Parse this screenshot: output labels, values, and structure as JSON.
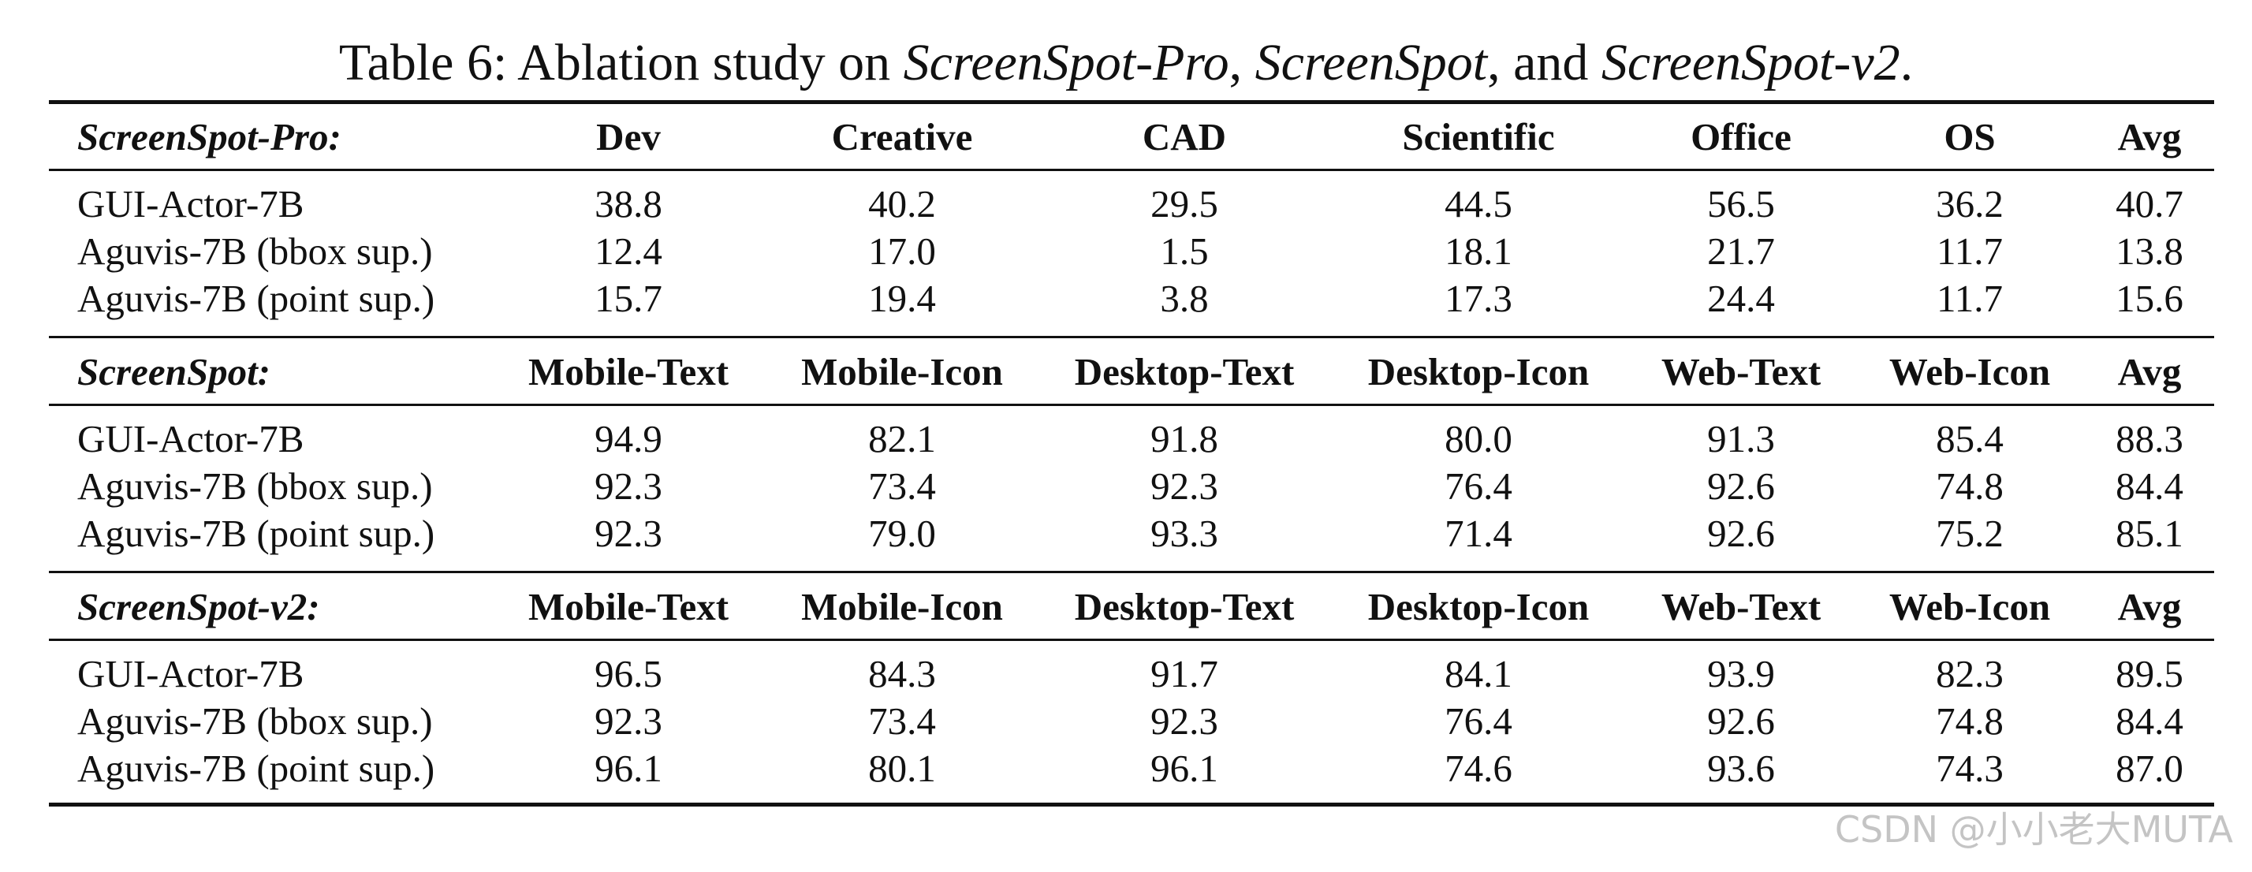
{
  "caption": {
    "prefix": "Table 6: Ablation study on ",
    "bench1": "ScreenSpot-Pro",
    "sep1": ", ",
    "bench2": "ScreenSpot",
    "sep2": ", and ",
    "bench3": "ScreenSpot-v2",
    "suffix": "."
  },
  "sections": [
    {
      "name": "ScreenSpot-Pro:",
      "columns": [
        "Dev",
        "Creative",
        "CAD",
        "Scientific",
        "Office",
        "OS",
        "Avg"
      ],
      "rows": [
        {
          "model": "GUI-Actor-7B",
          "values": [
            "38.8",
            "40.2",
            "29.5",
            "44.5",
            "56.5",
            "36.2",
            "40.7"
          ]
        },
        {
          "model": "Aguvis-7B (bbox sup.)",
          "values": [
            "12.4",
            "17.0",
            "1.5",
            "18.1",
            "21.7",
            "11.7",
            "13.8"
          ]
        },
        {
          "model": "Aguvis-7B (point sup.)",
          "values": [
            "15.7",
            "19.4",
            "3.8",
            "17.3",
            "24.4",
            "11.7",
            "15.6"
          ]
        }
      ]
    },
    {
      "name": "ScreenSpot:",
      "columns": [
        "Mobile-Text",
        "Mobile-Icon",
        "Desktop-Text",
        "Desktop-Icon",
        "Web-Text",
        "Web-Icon",
        "Avg"
      ],
      "rows": [
        {
          "model": "GUI-Actor-7B",
          "values": [
            "94.9",
            "82.1",
            "91.8",
            "80.0",
            "91.3",
            "85.4",
            "88.3"
          ]
        },
        {
          "model": "Aguvis-7B (bbox sup.)",
          "values": [
            "92.3",
            "73.4",
            "92.3",
            "76.4",
            "92.6",
            "74.8",
            "84.4"
          ]
        },
        {
          "model": "Aguvis-7B (point sup.)",
          "values": [
            "92.3",
            "79.0",
            "93.3",
            "71.4",
            "92.6",
            "75.2",
            "85.1"
          ]
        }
      ]
    },
    {
      "name": "ScreenSpot-v2:",
      "columns": [
        "Mobile-Text",
        "Mobile-Icon",
        "Desktop-Text",
        "Desktop-Icon",
        "Web-Text",
        "Web-Icon",
        "Avg"
      ],
      "rows": [
        {
          "model": "GUI-Actor-7B",
          "values": [
            "96.5",
            "84.3",
            "91.7",
            "84.1",
            "93.9",
            "82.3",
            "89.5"
          ]
        },
        {
          "model": "Aguvis-7B (bbox sup.)",
          "values": [
            "92.3",
            "73.4",
            "92.3",
            "76.4",
            "92.6",
            "74.8",
            "84.4"
          ]
        },
        {
          "model": "Aguvis-7B (point sup.)",
          "values": [
            "96.1",
            "80.1",
            "96.1",
            "74.6",
            "93.6",
            "74.3",
            "87.0"
          ]
        }
      ]
    }
  ],
  "watermark": "CSDN @小小老大MUTA"
}
